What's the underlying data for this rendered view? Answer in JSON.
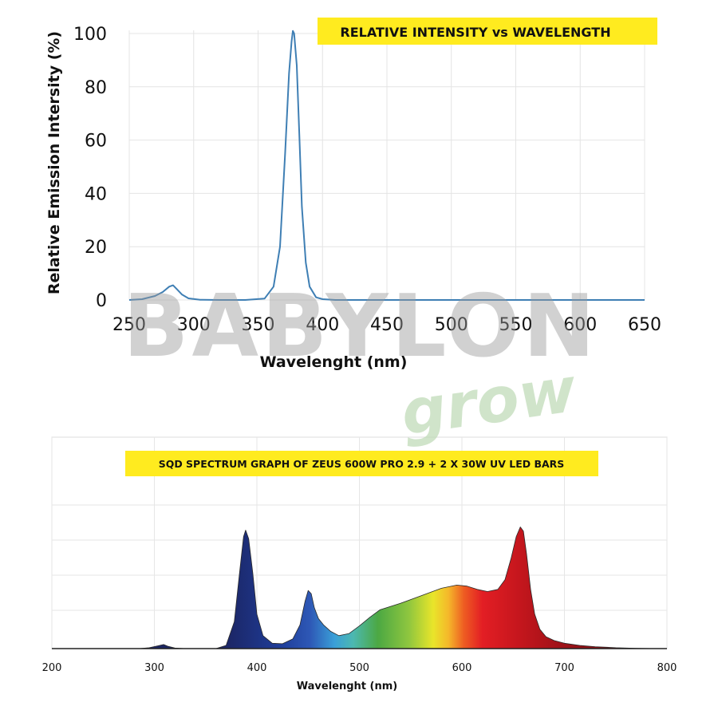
{
  "chart_data": [
    {
      "type": "line",
      "title": "RELATIVE INTENSITY vs WAVELENGTH",
      "xlabel": "Wavelenght (nm)",
      "ylabel": "Relative Emission Intersity (%)",
      "xlim": [
        250,
        650
      ],
      "ylim": [
        0,
        100
      ],
      "x_ticks": [
        "250",
        "300",
        "350",
        "400",
        "450",
        "500",
        "550",
        "600",
        "650"
      ],
      "y_ticks": [
        "0",
        "20",
        "40",
        "60",
        "80",
        "100"
      ],
      "grid": true,
      "line_color": "#3f7fb4",
      "series": [
        {
          "x": [
            250,
            260,
            270,
            276,
            281,
            284,
            287,
            291,
            296,
            305,
            320,
            340,
            355,
            362,
            367,
            371,
            374,
            376,
            377,
            378,
            380,
            382,
            384,
            387,
            390,
            395,
            400,
            410,
            450,
            500,
            550,
            600,
            650
          ],
          "y": [
            0,
            0.3,
            1.5,
            3,
            5,
            5.5,
            4,
            2,
            0.6,
            0.1,
            0,
            0,
            0.5,
            5,
            20,
            55,
            85,
            97,
            101,
            100,
            88,
            62,
            35,
            14,
            5,
            1,
            0.3,
            0,
            0,
            0,
            0,
            0,
            0
          ]
        }
      ]
    },
    {
      "type": "area",
      "title": "SQD SPECTRUM GRAPH OF ZEUS 600W PRO 2.9 + 2 X 30W UV LED BARS",
      "xlabel": "Wavelenght (nm)",
      "xlim": [
        200,
        800
      ],
      "x_ticks": [
        "200",
        "300",
        "400",
        "500",
        "600",
        "700",
        "800"
      ],
      "grid": true,
      "series": [
        {
          "x": [
            285,
            295,
            303,
            309,
            313,
            320,
            330,
            360,
            370,
            378,
            383,
            387,
            389,
            392,
            396,
            400,
            406,
            415,
            425,
            435,
            442,
            447,
            450,
            453,
            456,
            460,
            465,
            472,
            480,
            490,
            500,
            510,
            520,
            540,
            560,
            580,
            595,
            605,
            615,
            625,
            635,
            642,
            648,
            653,
            657,
            660,
            663,
            667,
            671,
            676,
            682,
            690,
            700,
            715,
            730,
            750,
            770,
            790
          ],
          "y": [
            0,
            0.8,
            2.5,
            3.8,
            2.2,
            0.5,
            0,
            0,
            3,
            25,
            70,
            104,
            110,
            102,
            70,
            32,
            12,
            5,
            4.5,
            9,
            22,
            44,
            54,
            51,
            38,
            28,
            22,
            16,
            12,
            14,
            21,
            29,
            36,
            42,
            49,
            56,
            59,
            58,
            55,
            53,
            55,
            64,
            84,
            104,
            113,
            109,
            88,
            55,
            32,
            18,
            11,
            7.5,
            5,
            3,
            1.8,
            0.8,
            0.3,
            0
          ]
        }
      ]
    }
  ],
  "watermark": {
    "brand": "BABYLON",
    "sub": "grow"
  }
}
